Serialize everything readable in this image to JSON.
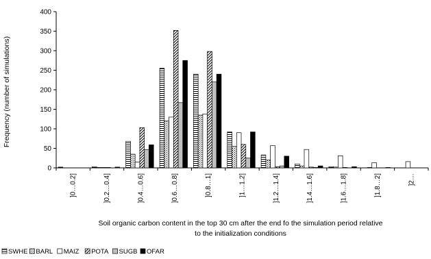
{
  "chart_data": {
    "type": "bar",
    "categories": [
      "]0…0.2]",
      "]0.2…0.4]",
      "]0.4…0.6]",
      "]0.6…0.8]",
      "]0.8…1]",
      "]1…1.2]",
      "]1.2…1.4]",
      "]1.4…1.6]",
      "]1.6…1.8]",
      "]1.8…2]",
      "]2…"
    ],
    "series": [
      {
        "name": "SWHE",
        "pattern": "hlines",
        "values": [
          2,
          3,
          68,
          255,
          240,
          92,
          33,
          10,
          3,
          0,
          0
        ]
      },
      {
        "name": "BARL",
        "pattern": "dots",
        "values": [
          0,
          1,
          35,
          120,
          135,
          55,
          20,
          5,
          2,
          1,
          0
        ]
      },
      {
        "name": "MAIZ",
        "pattern": "white",
        "values": [
          0,
          1,
          15,
          130,
          138,
          90,
          57,
          47,
          31,
          13,
          16
        ]
      },
      {
        "name": "POTA",
        "pattern": "diag",
        "values": [
          0,
          1,
          103,
          352,
          298,
          60,
          3,
          2,
          1,
          0,
          0
        ]
      },
      {
        "name": "SUGB",
        "pattern": "gray",
        "values": [
          0,
          0,
          47,
          167,
          220,
          25,
          5,
          1,
          0,
          0,
          0
        ]
      },
      {
        "name": "OFAR",
        "pattern": "black",
        "values": [
          0,
          2,
          59,
          275,
          240,
          92,
          30,
          5,
          3,
          1,
          0
        ]
      }
    ],
    "xlabel": "Soil organic carbon content in the top 30 cm after the end fo the simulation period relative to the initialization conditions",
    "xlabel_lines": [
      "Soil organic carbon content in the top 30 cm after the end fo the simulation period relative",
      "to the initialization conditions"
    ],
    "ylabel": "Frequency (number of simulations)",
    "ylim": [
      0,
      400
    ],
    "yticks": [
      0,
      50,
      100,
      150,
      200,
      250,
      300,
      350,
      400
    ],
    "grid": false,
    "legend_position": "bottom-left"
  }
}
